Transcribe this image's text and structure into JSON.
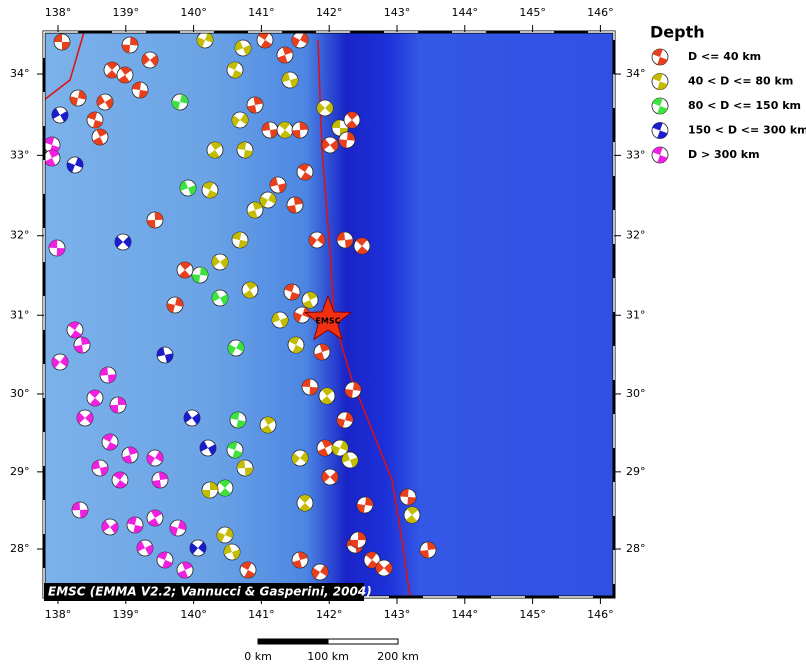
{
  "map": {
    "lon_ticks": [
      {
        "value": 138,
        "label": "138°"
      },
      {
        "value": 139,
        "label": "139°"
      },
      {
        "value": 140,
        "label": "140°"
      },
      {
        "value": 141,
        "label": "141°"
      },
      {
        "value": 142,
        "label": "142°"
      },
      {
        "value": 143,
        "label": "143°"
      },
      {
        "value": 144,
        "label": "144°"
      },
      {
        "value": 145,
        "label": "145°"
      },
      {
        "value": 146,
        "label": "146°"
      }
    ],
    "lat_ticks": [
      {
        "value": 28,
        "label": "28°"
      },
      {
        "value": 29,
        "label": "29°"
      },
      {
        "value": 30,
        "label": "30°"
      },
      {
        "value": 31,
        "label": "31°"
      },
      {
        "value": 32,
        "label": "32°"
      },
      {
        "value": 33,
        "label": "33°"
      },
      {
        "value": 34,
        "label": "34°"
      }
    ],
    "legend": {
      "title": "Depth",
      "items": [
        {
          "label": "D <= 40 km",
          "color": "#e8401c"
        },
        {
          "label": "40 < D <= 80 km",
          "color": "#c4bc00"
        },
        {
          "label": "80 < D <= 150 km",
          "color": "#3ee23e"
        },
        {
          "label": "150 < D <= 300 km",
          "color": "#1c1ccc"
        },
        {
          "label": "D > 300 km",
          "color": "#f020e0"
        }
      ]
    },
    "credit": "EMSC (EMMA V2.2; Vannucci & Gasperini, 2004)",
    "epicenter_label": "EMSC",
    "scale_bar": {
      "labels": [
        "0 km",
        "100 km",
        "200 km"
      ]
    }
  }
}
